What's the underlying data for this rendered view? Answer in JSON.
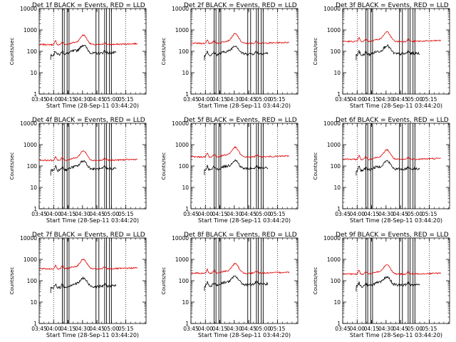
{
  "chart_data": {
    "type": "line",
    "layout": "3x3 grid",
    "y_scale": "log",
    "ylim": [
      1,
      10000
    ],
    "y_ticks": [
      "1",
      "10",
      "100",
      "1000",
      "10000"
    ],
    "ylabel": "Counts/sec",
    "x_ticks": [
      "03:45",
      "04:00",
      "04:15",
      "04:30",
      "04:45",
      "05:00",
      "05:15"
    ],
    "xlabel": "Start Time (28-Sep-11 03:44:20)",
    "series_colors": {
      "events": "#000000",
      "lld": "#e00000"
    },
    "grid": false,
    "panels": [
      {
        "title": "Det 1f BLACK = Events, RED = LLD",
        "events_level": 90,
        "lld_level": 200,
        "events_start": "03:57"
      },
      {
        "title": "Det 2f BLACK = Events, RED = LLD",
        "events_level": 85,
        "lld_level": 230,
        "events_start": "03:59"
      },
      {
        "title": "Det 3f BLACK = Events, RED = LLD",
        "events_level": 85,
        "lld_level": 280,
        "events_start": "03:59"
      },
      {
        "title": "Det 4f BLACK = Events, RED = LLD",
        "events_level": 80,
        "lld_level": 180,
        "events_start": "03:57"
      },
      {
        "title": "Det 5f BLACK = Events, RED = LLD",
        "events_level": 85,
        "lld_level": 260,
        "events_start": "03:59"
      },
      {
        "title": "Det 6f BLACK = Events, RED = LLD",
        "events_level": 80,
        "lld_level": 200,
        "events_start": "03:59"
      },
      {
        "title": "Det 7f BLACK = Events, RED = LLD",
        "events_level": 60,
        "lld_level": 350,
        "events_start": "03:57"
      },
      {
        "title": "Det 8f BLACK = Events, RED = LLD",
        "events_level": 75,
        "lld_level": 220,
        "events_start": "03:59"
      },
      {
        "title": "Det 9f BLACK = Events, RED = LLD",
        "events_level": 70,
        "lld_level": 200,
        "events_start": "03:59"
      }
    ],
    "dotted_lines": [
      "04:00",
      "05:15"
    ],
    "solid_lines": [
      "04:09",
      "04:11",
      "04:14",
      "04:16",
      "04:44",
      "04:47",
      "04:53",
      "04:55",
      "04:58",
      "05:00"
    ]
  }
}
